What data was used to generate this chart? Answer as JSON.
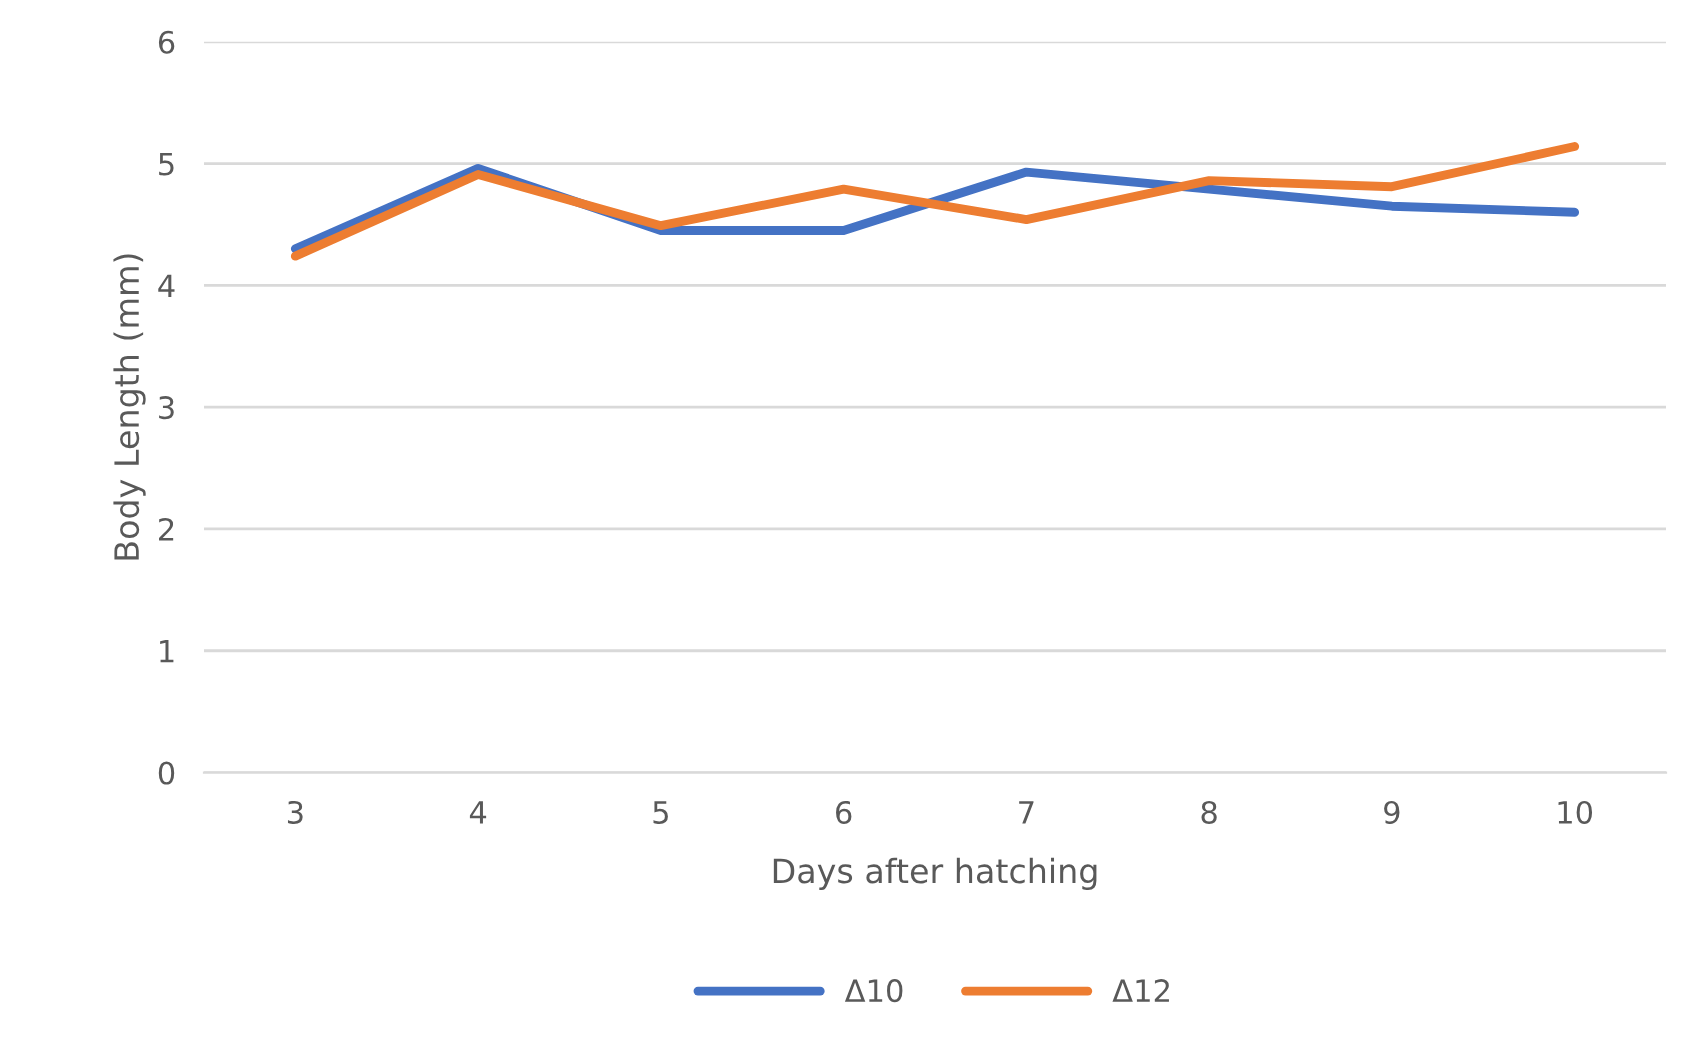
{
  "chart_data": {
    "type": "line",
    "xlabel": "Days after hatching",
    "ylabel": "Body Length (mm)",
    "categories": [
      "3",
      "4",
      "5",
      "6",
      "7",
      "8",
      "9",
      "10"
    ],
    "series": [
      {
        "name": "Δ10",
        "color": "#4472c4",
        "values": [
          4.3,
          4.96,
          4.45,
          4.45,
          4.93,
          4.79,
          4.65,
          4.6
        ]
      },
      {
        "name": "Δ12",
        "color": "#ed7d31",
        "values": [
          4.24,
          4.91,
          4.49,
          4.79,
          4.54,
          4.86,
          4.81,
          5.14
        ]
      }
    ],
    "ylim": [
      0,
      6
    ],
    "yticks": [
      0,
      1,
      2,
      3,
      4,
      5,
      6
    ],
    "grid": "y",
    "legend": "bottom",
    "marker": "none",
    "line_style": "solid"
  }
}
